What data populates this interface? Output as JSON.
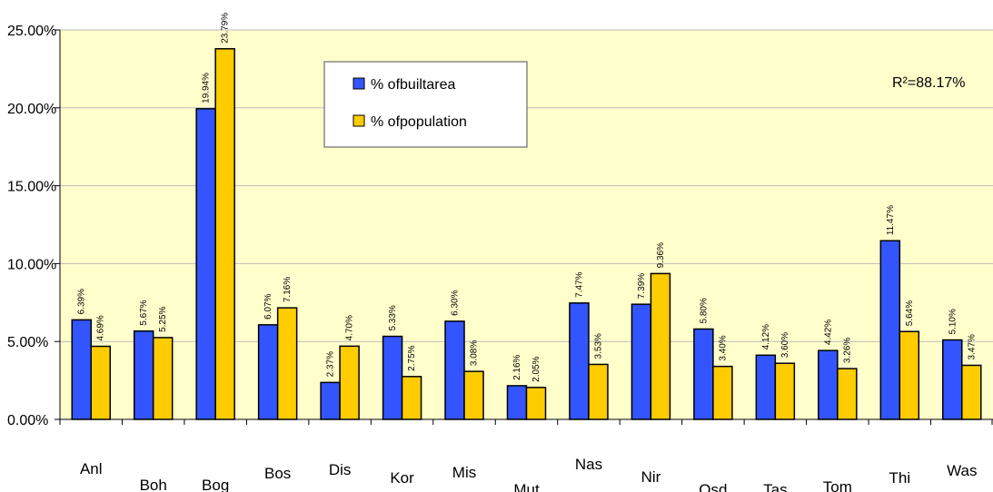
{
  "chart_data": {
    "type": "bar",
    "categories": [
      "Anl",
      "Boh",
      "Bog",
      "Bos",
      "Dis",
      "Kor",
      "Mis",
      "Mut",
      "Nas",
      "Nir",
      "Osd",
      "Tas",
      "Tom",
      "Thi",
      "Was"
    ],
    "series": [
      {
        "name": "% ofbuiltarea",
        "color": "#3355ff",
        "values": [
          6.39,
          5.67,
          19.94,
          6.07,
          2.37,
          5.33,
          6.3,
          2.16,
          7.47,
          7.39,
          5.8,
          4.12,
          4.42,
          11.47,
          5.1
        ],
        "labels": [
          "6.39%",
          "5.67%",
          "19.94%",
          "6.07%",
          "2.37%",
          "5.33%",
          "6.30%",
          "2.16%",
          "7.47%",
          "7.39%",
          "5.80%",
          "4.12%",
          "4.42%",
          "11.47%",
          "5.10%"
        ]
      },
      {
        "name": "% ofpopulation",
        "color": "#ffcc00",
        "values": [
          4.69,
          5.25,
          23.79,
          7.16,
          4.7,
          2.75,
          3.08,
          2.05,
          3.53,
          9.36,
          3.4,
          3.6,
          3.26,
          5.64,
          3.47
        ],
        "labels": [
          "4.69%",
          "5.25%",
          "23.79%",
          "7.16%",
          "4.70%",
          "2.75%",
          "3.08%",
          "2.05%",
          "3.53%",
          "9.36%",
          "3.40%",
          "3.60%",
          "3.26%",
          "5.64%",
          "3.47%"
        ]
      }
    ],
    "y_ticks": [
      0,
      5,
      10,
      15,
      20,
      25
    ],
    "y_tick_labels": [
      "0.00%",
      "5.00%",
      "10.00%",
      "15.00%",
      "20.00%",
      "25.00%"
    ],
    "ylim": [
      0,
      25
    ],
    "grid": true,
    "legend_position": "top-center",
    "annotation": "R²=88.17%",
    "plot_background": "#ffffcc"
  }
}
